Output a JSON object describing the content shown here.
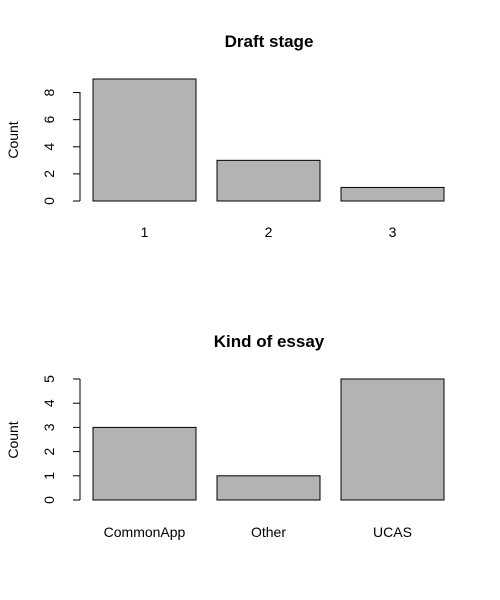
{
  "colors": {
    "bar_fill": "#b3b3b3",
    "bar_stroke": "#000000"
  },
  "chart_data": [
    {
      "type": "bar",
      "title": "Draft stage",
      "xlabel": "",
      "ylabel": "Count",
      "categories": [
        "1",
        "2",
        "3"
      ],
      "values": [
        9,
        3,
        1
      ],
      "ylim": [
        0,
        9
      ],
      "yticks": [
        0,
        2,
        4,
        6,
        8
      ],
      "grid": false,
      "legend": "none"
    },
    {
      "type": "bar",
      "title": "Kind of essay",
      "xlabel": "",
      "ylabel": "Count",
      "categories": [
        "CommonApp",
        "Other",
        "UCAS"
      ],
      "values": [
        3,
        1,
        5
      ],
      "ylim": [
        0,
        5
      ],
      "yticks": [
        0,
        1,
        2,
        3,
        4,
        5
      ],
      "grid": false,
      "legend": "none"
    }
  ]
}
